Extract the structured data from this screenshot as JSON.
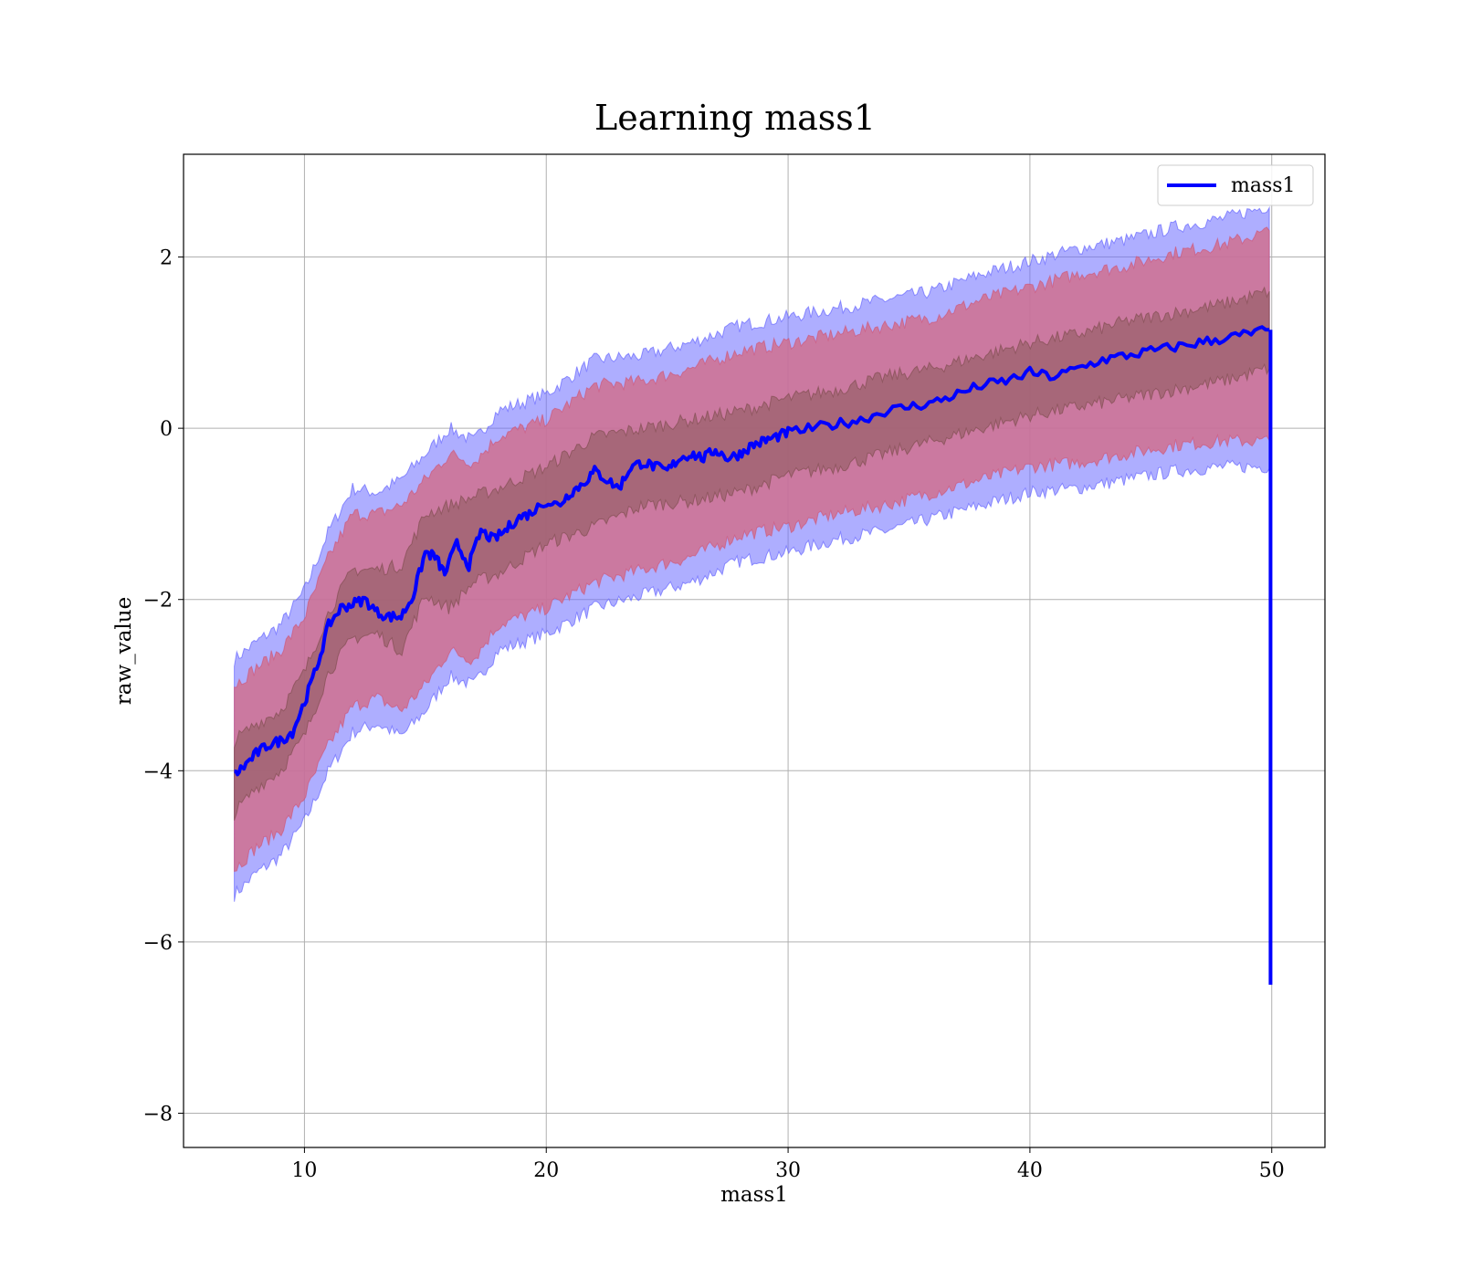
{
  "chart_data": {
    "type": "line",
    "title": "Learning mass1",
    "xlabel": "mass1",
    "ylabel": "raw_value",
    "xlim": [
      5,
      52.2
    ],
    "ylim": [
      -8.4,
      3.2
    ],
    "xticks": [
      10,
      20,
      30,
      40,
      50
    ],
    "yticks": [
      -8,
      -6,
      -4,
      -2,
      0,
      2
    ],
    "xtick_labels": [
      "10",
      "20",
      "30",
      "40",
      "50"
    ],
    "ytick_labels": [
      "−8",
      "−6",
      "−4",
      "−2",
      "0",
      "2"
    ],
    "grid": true,
    "legend_position": "top-right",
    "colors": {
      "line": "#0000ff",
      "outer_band": "#6b6bff",
      "middle_band": "#d0708f",
      "inner_band": "#8a5a5a",
      "grid": "#b0b0b0"
    },
    "series": [
      {
        "name": "mass1",
        "x": [
          7.1,
          7.5,
          8.0,
          8.5,
          9.0,
          9.5,
          10.0,
          10.5,
          11.0,
          11.5,
          12.0,
          12.5,
          13.0,
          13.5,
          14.0,
          14.5,
          15.0,
          15.4,
          15.8,
          16.3,
          16.8,
          17.3,
          17.8,
          18.3,
          18.8,
          19.3,
          20.0,
          20.5,
          21.0,
          21.5,
          22.0,
          22.5,
          23.0,
          23.5,
          24.0,
          24.5,
          25.0,
          25.5,
          26.0,
          26.5,
          27.0,
          27.5,
          28.0,
          28.5,
          29.0,
          29.5,
          30.0,
          31.0,
          32.0,
          33.0,
          34.0,
          35.0,
          36.0,
          37.0,
          38.0,
          39.0,
          40.0,
          41.0,
          42.0,
          43.0,
          44.0,
          45.0,
          46.0,
          47.0,
          48.0,
          49.0,
          49.9
        ],
        "y": [
          -4.05,
          -3.95,
          -3.8,
          -3.7,
          -3.65,
          -3.55,
          -3.2,
          -2.8,
          -2.3,
          -2.1,
          -2.05,
          -2.0,
          -2.15,
          -2.2,
          -2.2,
          -1.95,
          -1.45,
          -1.5,
          -1.7,
          -1.35,
          -1.6,
          -1.2,
          -1.3,
          -1.2,
          -1.05,
          -1.0,
          -0.85,
          -0.9,
          -0.75,
          -0.65,
          -0.5,
          -0.6,
          -0.7,
          -0.45,
          -0.4,
          -0.45,
          -0.5,
          -0.35,
          -0.3,
          -0.35,
          -0.25,
          -0.35,
          -0.3,
          -0.2,
          -0.15,
          -0.1,
          -0.05,
          0.0,
          0.05,
          0.1,
          0.2,
          0.25,
          0.3,
          0.4,
          0.5,
          0.55,
          0.65,
          0.6,
          0.7,
          0.8,
          0.85,
          0.9,
          0.95,
          1.0,
          1.05,
          1.1,
          1.15
        ]
      }
    ],
    "end_drop": {
      "x": 49.95,
      "y_from": 1.15,
      "y_to": -6.5
    },
    "bands": [
      {
        "name": "outer",
        "x": [
          7.1,
          8.0,
          9.0,
          10.0,
          11.0,
          12.0,
          13.0,
          14.0,
          15.0,
          16.0,
          17.0,
          18.0,
          20.0,
          22.0,
          24.0,
          26.0,
          28.0,
          30.0,
          32.0,
          34.0,
          36.0,
          38.0,
          40.0,
          42.0,
          44.0,
          46.0,
          48.0,
          49.9
        ],
        "upper": [
          -2.7,
          -2.5,
          -2.3,
          -1.9,
          -1.2,
          -0.7,
          -0.75,
          -0.6,
          -0.3,
          0.0,
          -0.15,
          0.2,
          0.4,
          0.8,
          0.85,
          1.0,
          1.2,
          1.3,
          1.4,
          1.5,
          1.6,
          1.8,
          1.95,
          2.1,
          2.2,
          2.35,
          2.45,
          2.6
        ],
        "lower": [
          -5.45,
          -5.2,
          -5.0,
          -4.6,
          -4.0,
          -3.55,
          -3.45,
          -3.6,
          -3.3,
          -2.9,
          -3.0,
          -2.6,
          -2.4,
          -2.1,
          -1.95,
          -1.8,
          -1.55,
          -1.45,
          -1.3,
          -1.2,
          -1.05,
          -0.9,
          -0.75,
          -0.7,
          -0.6,
          -0.5,
          -0.45,
          -0.45
        ]
      },
      {
        "name": "middle",
        "x": [
          7.1,
          8.0,
          9.0,
          10.0,
          11.0,
          12.0,
          13.0,
          14.0,
          15.0,
          16.0,
          17.0,
          18.0,
          20.0,
          22.0,
          24.0,
          26.0,
          28.0,
          30.0,
          32.0,
          34.0,
          36.0,
          38.0,
          40.0,
          42.0,
          44.0,
          46.0,
          48.0,
          49.9
        ],
        "upper": [
          -3.0,
          -2.8,
          -2.6,
          -2.2,
          -1.5,
          -1.0,
          -1.0,
          -0.9,
          -0.6,
          -0.3,
          -0.4,
          -0.1,
          0.1,
          0.5,
          0.55,
          0.7,
          0.9,
          1.0,
          1.1,
          1.2,
          1.3,
          1.5,
          1.65,
          1.8,
          1.9,
          2.05,
          2.15,
          2.3
        ],
        "lower": [
          -5.15,
          -4.9,
          -4.7,
          -4.3,
          -3.7,
          -3.25,
          -3.15,
          -3.3,
          -3.0,
          -2.6,
          -2.7,
          -2.3,
          -2.1,
          -1.8,
          -1.65,
          -1.5,
          -1.25,
          -1.15,
          -1.0,
          -0.9,
          -0.75,
          -0.6,
          -0.45,
          -0.4,
          -0.3,
          -0.2,
          -0.15,
          -0.15
        ]
      },
      {
        "name": "inner",
        "x": [
          7.1,
          8.0,
          9.0,
          10.0,
          11.0,
          12.0,
          13.0,
          14.0,
          15.0,
          16.0,
          17.0,
          18.0,
          20.0,
          22.0,
          24.0,
          26.0,
          28.0,
          30.0,
          32.0,
          34.0,
          36.0,
          38.0,
          40.0,
          42.0,
          44.0,
          46.0,
          48.0,
          49.9
        ],
        "upper": [
          -3.65,
          -3.45,
          -3.3,
          -2.85,
          -2.15,
          -1.65,
          -1.65,
          -1.6,
          -1.0,
          -0.9,
          -0.8,
          -0.7,
          -0.45,
          -0.1,
          0.0,
          0.1,
          0.2,
          0.35,
          0.45,
          0.6,
          0.7,
          0.85,
          1.0,
          1.1,
          1.25,
          1.35,
          1.45,
          1.6
        ],
        "lower": [
          -4.5,
          -4.2,
          -4.0,
          -3.6,
          -2.85,
          -2.45,
          -2.4,
          -2.6,
          -1.95,
          -2.1,
          -1.8,
          -1.7,
          -1.35,
          -1.15,
          -0.9,
          -0.85,
          -0.75,
          -0.55,
          -0.45,
          -0.3,
          -0.15,
          0.0,
          0.15,
          0.25,
          0.35,
          0.45,
          0.55,
          0.7
        ]
      }
    ]
  }
}
